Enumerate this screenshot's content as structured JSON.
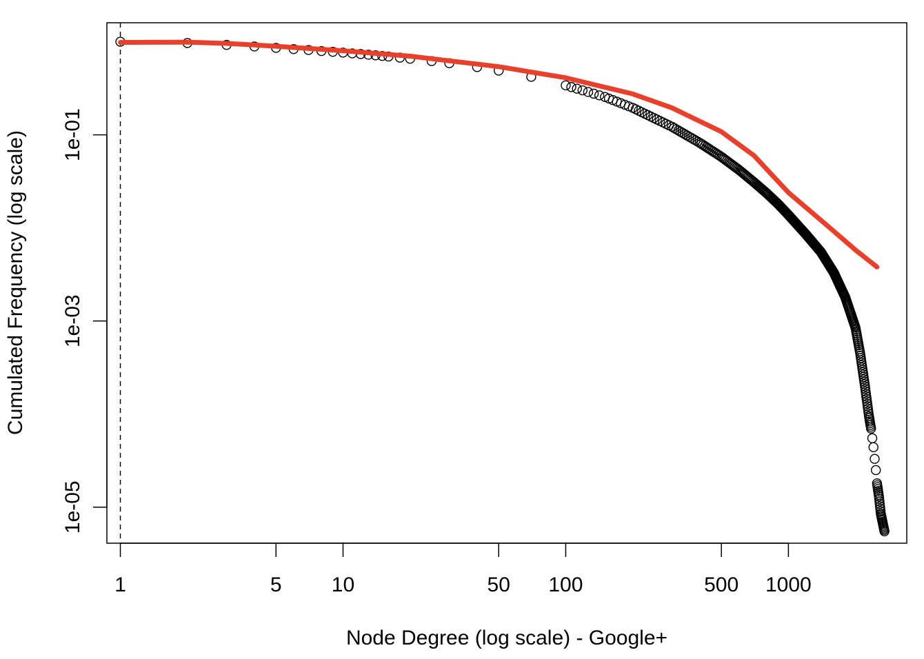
{
  "chart_data": {
    "type": "scatter",
    "title": "",
    "xlabel": "Node Degree (log scale) - Google+",
    "ylabel": "Cumulated Frequency (log scale)",
    "x_scale": "log",
    "y_scale": "log",
    "xlim": [
      0.87,
      3400
    ],
    "ylim": [
      4.1e-06,
      1.6
    ],
    "x_ticks": [
      1,
      5,
      10,
      50,
      100,
      500,
      1000
    ],
    "x_tick_labels": [
      "1",
      "5",
      "10",
      "50",
      "100",
      "500",
      "1000"
    ],
    "y_ticks": [
      1e-05,
      0.001,
      0.1
    ],
    "y_tick_labels": [
      "1e-05",
      "1e-03",
      "1e-01"
    ],
    "grid": false,
    "legend": "none",
    "reference_line": {
      "x": 1,
      "style": "dashed",
      "color": "#000000"
    },
    "series": [
      {
        "kind": "points",
        "marker": "open-circle",
        "color": "#000000",
        "points": [
          [
            1,
            1.0
          ],
          [
            2,
            0.97
          ],
          [
            3,
            0.925
          ],
          [
            4,
            0.89
          ],
          [
            5,
            0.86
          ],
          [
            6,
            0.835
          ],
          [
            7,
            0.815
          ],
          [
            8,
            0.795
          ],
          [
            9,
            0.78
          ],
          [
            10,
            0.765
          ],
          [
            11,
            0.75
          ],
          [
            12,
            0.738
          ],
          [
            13,
            0.726
          ],
          [
            14,
            0.715
          ],
          [
            15,
            0.704
          ],
          [
            16,
            0.694
          ],
          [
            18,
            0.675
          ],
          [
            20,
            0.657
          ],
          [
            25,
            0.62
          ],
          [
            30,
            0.588
          ],
          [
            40,
            0.535
          ],
          [
            50,
            0.49
          ],
          [
            70,
            0.42
          ],
          [
            100,
            0.34
          ],
          [
            150,
            0.255
          ],
          [
            200,
            0.195
          ],
          [
            300,
            0.122
          ],
          [
            400,
            0.082
          ],
          [
            500,
            0.058
          ],
          [
            600,
            0.042
          ],
          [
            700,
            0.031
          ],
          [
            800,
            0.0235
          ],
          [
            900,
            0.018
          ],
          [
            1000,
            0.0138
          ],
          [
            1200,
            0.0085
          ],
          [
            1400,
            0.0055
          ],
          [
            1600,
            0.0033
          ],
          [
            1800,
            0.0018
          ],
          [
            2000,
            0.00085
          ],
          [
            2100,
            0.00045
          ],
          [
            2200,
            0.00021
          ],
          [
            2300,
            9.5e-05
          ],
          [
            2350,
            7e-05
          ],
          [
            2380,
            5.5e-05
          ],
          [
            2410,
            4.4e-05
          ],
          [
            2440,
            3.3e-05
          ],
          [
            2470,
            2.5e-05
          ],
          [
            2500,
            1.8e-05
          ],
          [
            2550,
            1.3e-05
          ],
          [
            2600,
            8.5e-06
          ],
          [
            2700,
            5.5e-06
          ]
        ]
      },
      {
        "kind": "line",
        "name": "",
        "color": "#e8402a",
        "points": [
          [
            1,
            0.985
          ],
          [
            2,
            0.99
          ],
          [
            3,
            0.96
          ],
          [
            5,
            0.895
          ],
          [
            10,
            0.8
          ],
          [
            20,
            0.7
          ],
          [
            50,
            0.54
          ],
          [
            100,
            0.41
          ],
          [
            200,
            0.275
          ],
          [
            300,
            0.195
          ],
          [
            500,
            0.108
          ],
          [
            700,
            0.06
          ],
          [
            1000,
            0.024
          ],
          [
            1500,
            0.0105
          ],
          [
            2000,
            0.0058
          ],
          [
            2500,
            0.0038
          ]
        ]
      }
    ]
  }
}
